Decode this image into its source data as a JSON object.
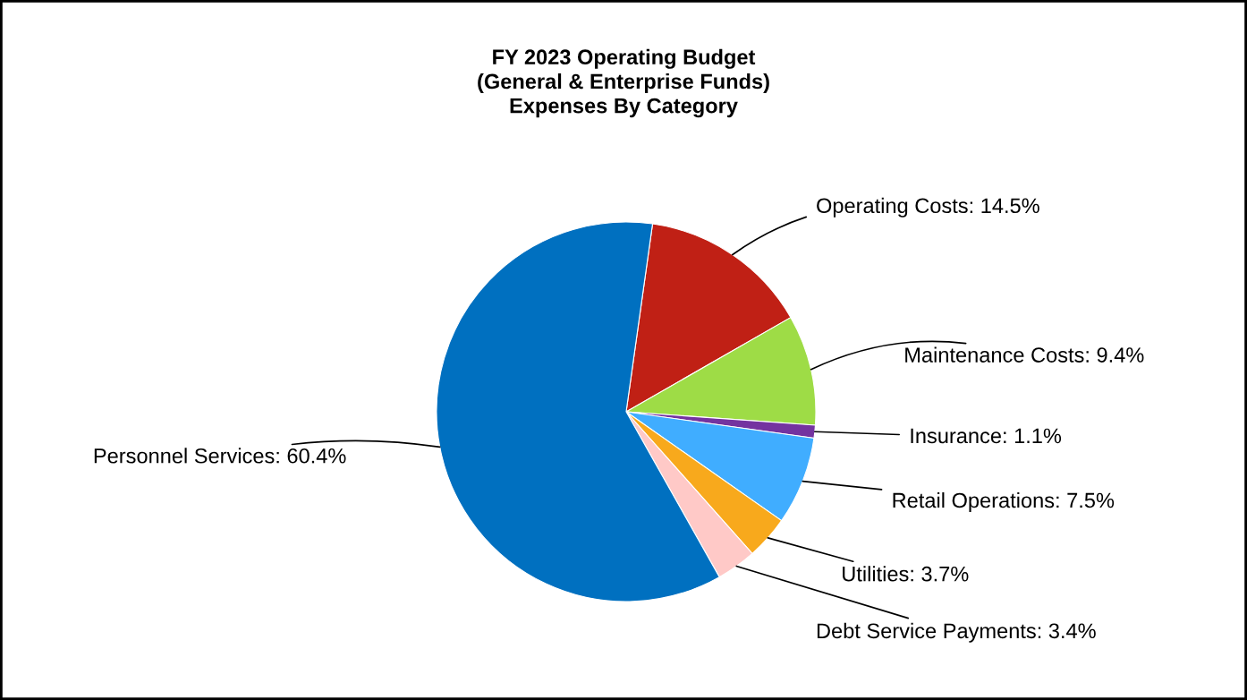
{
  "chart_data": {
    "type": "pie",
    "title": "FY 2023 Operating Budget\n(General & Enterprise Funds)\nExpenses By Category",
    "categories": [
      "Operating Costs",
      "Maintenance Costs",
      "Insurance",
      "Retail Operations",
      "Utilities",
      "Debt Service Payments",
      "Personnel Services"
    ],
    "values": [
      14.5,
      9.4,
      1.1,
      7.5,
      3.7,
      3.4,
      60.4
    ],
    "value_labels": [
      "14.5%",
      "9.4%",
      "1.1%",
      "7.5%",
      "3.7%",
      "3.4%",
      "60.4%"
    ],
    "colors": [
      "#c02015",
      "#9edc46",
      "#7433a0",
      "#40adff",
      "#f8a91c",
      "#ffc9c7",
      "#0070c0"
    ],
    "legend": false
  }
}
